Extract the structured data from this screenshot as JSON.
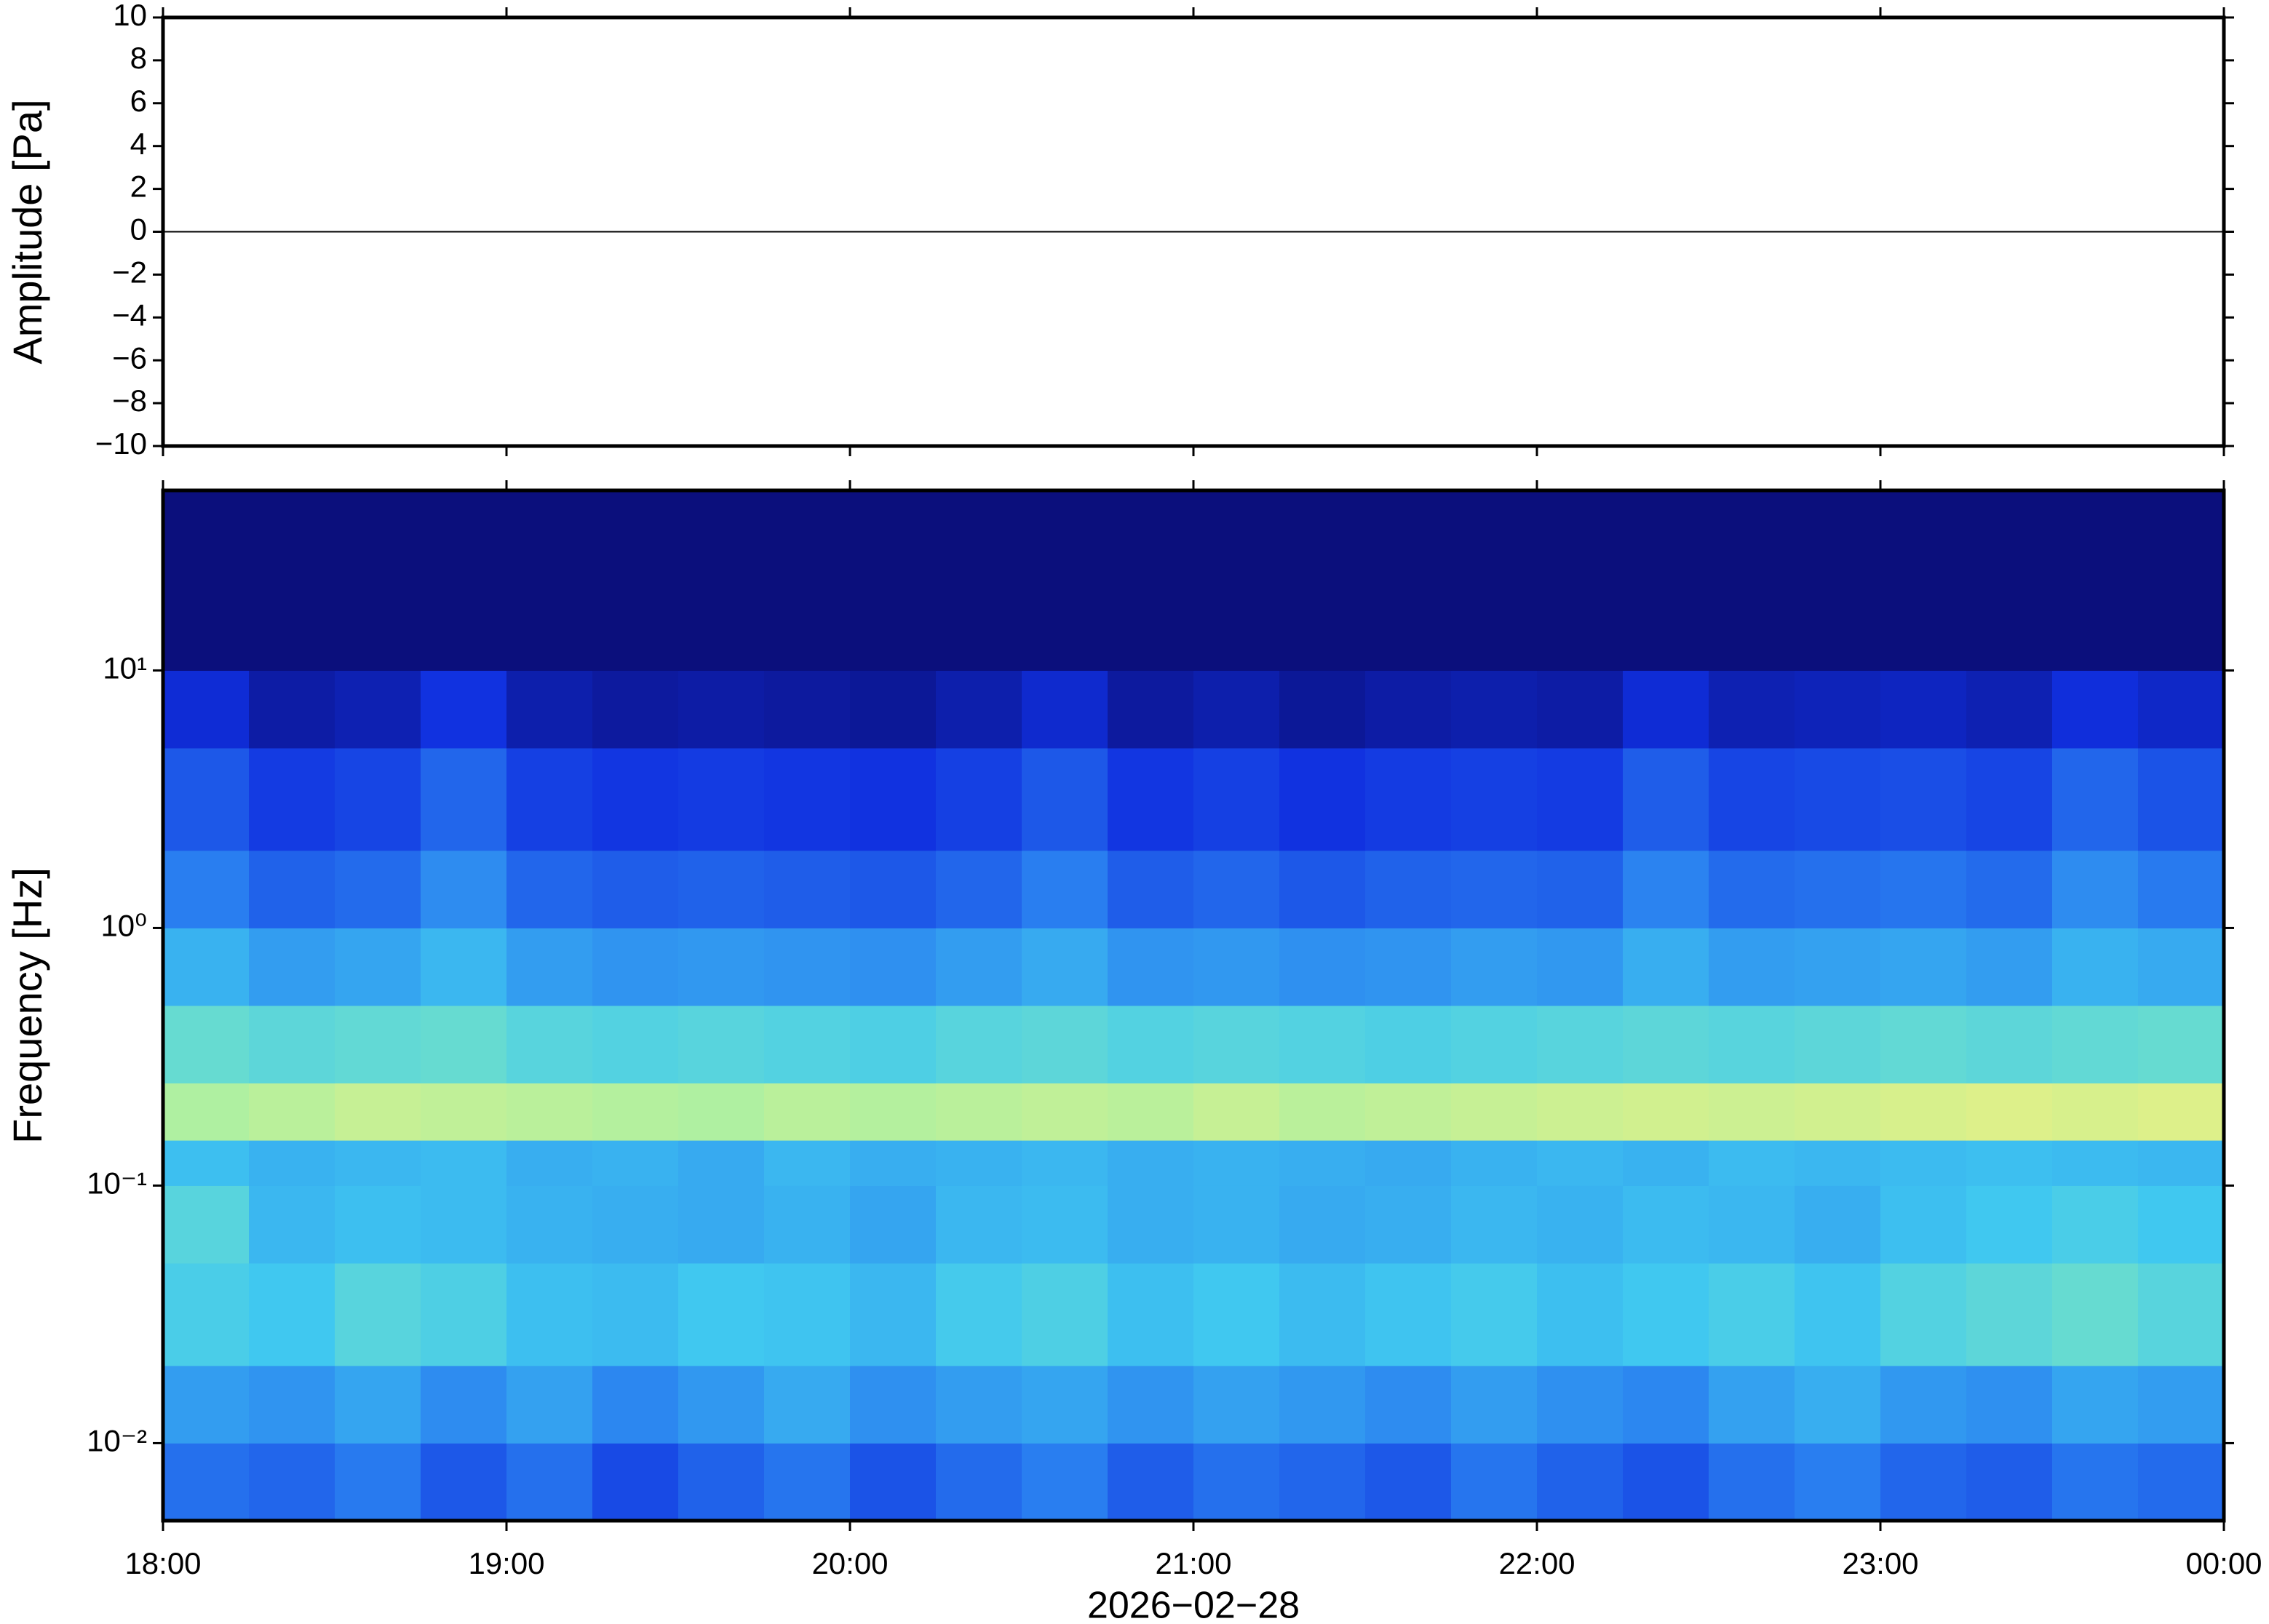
{
  "chart_data": [
    {
      "type": "line",
      "ylabel": "Amplitude [Pa]",
      "xlim": [
        18,
        24
      ],
      "ylim": [
        -10,
        10
      ],
      "yticks": [
        {
          "value": -10,
          "label": "−10"
        },
        {
          "value": -8,
          "label": "−8"
        },
        {
          "value": -6,
          "label": "−6"
        },
        {
          "value": -4,
          "label": "−4"
        },
        {
          "value": -2,
          "label": "−2"
        },
        0,
        2,
        4,
        6,
        8,
        10
      ],
      "xticks": [
        18,
        19,
        20,
        21,
        22,
        23,
        24
      ],
      "color": "#000000",
      "x": [
        18,
        18.25,
        18.5,
        18.75,
        19,
        19.25,
        19.5,
        19.75,
        20,
        20.25,
        20.5,
        20.75,
        21,
        21.25,
        21.5,
        21.75,
        22,
        22.25,
        22.5,
        22.75,
        23,
        23.25,
        23.5,
        23.75,
        24
      ],
      "values": [
        0,
        0,
        0,
        0,
        0,
        0,
        0,
        0,
        0,
        0,
        0,
        0,
        0,
        0,
        0,
        0,
        0,
        0,
        0,
        0,
        0,
        0,
        0,
        0,
        0
      ]
    },
    {
      "type": "heatmap",
      "ylabel": "Frequency [Hz]",
      "xlabel": "2026−02−28",
      "xlim": [
        18,
        24
      ],
      "xticks": [
        {
          "value": 18,
          "label": "18:00"
        },
        {
          "value": 19,
          "label": "19:00"
        },
        {
          "value": 20,
          "label": "20:00"
        },
        {
          "value": 21,
          "label": "21:00"
        },
        {
          "value": 22,
          "label": "22:00"
        },
        {
          "value": 23,
          "label": "23:00"
        },
        {
          "value": 24,
          "label": "00:00"
        }
      ],
      "ylim": [
        0.005,
        50
      ],
      "log_y": true,
      "yticks": [
        {
          "value": 0.01,
          "label": "10⁻²"
        },
        {
          "value": 0.1,
          "label": "10⁻¹"
        },
        {
          "value": 1,
          "label": "10⁰"
        },
        {
          "value": 10,
          "label": "10¹"
        }
      ],
      "zlim": [
        0,
        1
      ],
      "colormap": [
        "#0a0a6e",
        "#1030e0",
        "#2a80f0",
        "#40c8f0",
        "#90f0b0",
        "#f0f080",
        "#f8a050"
      ],
      "xbins": [
        18,
        18.25,
        18.5,
        18.75,
        19,
        19.25,
        19.5,
        19.75,
        20,
        20.25,
        20.5,
        20.75,
        21,
        21.25,
        21.5,
        21.75,
        22,
        22.25,
        22.5,
        22.75,
        23,
        23.25,
        23.5,
        23.75,
        24
      ],
      "ybins": [
        0.005,
        0.01,
        0.02,
        0.05,
        0.1,
        0.15,
        0.25,
        0.5,
        1,
        2,
        5,
        10,
        50
      ],
      "z": [
        [
          0.3,
          0.28,
          0.32,
          0.25,
          0.3,
          0.22,
          0.27,
          0.31,
          0.24,
          0.29,
          0.33,
          0.26,
          0.3,
          0.28,
          0.25,
          0.31,
          0.27,
          0.24,
          0.3,
          0.33,
          0.28,
          0.26,
          0.31,
          0.29
        ],
        [
          0.4,
          0.38,
          0.42,
          0.36,
          0.41,
          0.35,
          0.39,
          0.43,
          0.37,
          0.4,
          0.42,
          0.38,
          0.41,
          0.39,
          0.36,
          0.4,
          0.37,
          0.35,
          0.41,
          0.44,
          0.39,
          0.37,
          0.42,
          0.4
        ],
        [
          0.52,
          0.5,
          0.55,
          0.53,
          0.48,
          0.47,
          0.5,
          0.49,
          0.46,
          0.51,
          0.53,
          0.48,
          0.5,
          0.47,
          0.49,
          0.51,
          0.48,
          0.5,
          0.52,
          0.49,
          0.54,
          0.56,
          0.58,
          0.55
        ],
        [
          0.55,
          0.46,
          0.48,
          0.47,
          0.45,
          0.44,
          0.43,
          0.45,
          0.42,
          0.46,
          0.47,
          0.44,
          0.45,
          0.43,
          0.44,
          0.46,
          0.45,
          0.47,
          0.46,
          0.44,
          0.48,
          0.5,
          0.52,
          0.5
        ],
        [
          0.48,
          0.45,
          0.46,
          0.47,
          0.44,
          0.45,
          0.43,
          0.46,
          0.44,
          0.45,
          0.46,
          0.44,
          0.45,
          0.44,
          0.43,
          0.45,
          0.46,
          0.45,
          0.47,
          0.46,
          0.47,
          0.48,
          0.47,
          0.46
        ],
        [
          0.72,
          0.74,
          0.76,
          0.75,
          0.74,
          0.73,
          0.72,
          0.74,
          0.73,
          0.74,
          0.75,
          0.74,
          0.76,
          0.74,
          0.75,
          0.76,
          0.77,
          0.78,
          0.77,
          0.78,
          0.79,
          0.8,
          0.79,
          0.8
        ],
        [
          0.58,
          0.56,
          0.57,
          0.58,
          0.55,
          0.54,
          0.55,
          0.54,
          0.53,
          0.55,
          0.56,
          0.54,
          0.55,
          0.54,
          0.53,
          0.54,
          0.55,
          0.56,
          0.55,
          0.56,
          0.57,
          0.56,
          0.57,
          0.58
        ],
        [
          0.45,
          0.4,
          0.42,
          0.46,
          0.4,
          0.38,
          0.39,
          0.38,
          0.37,
          0.4,
          0.43,
          0.38,
          0.39,
          0.37,
          0.38,
          0.4,
          0.39,
          0.44,
          0.4,
          0.41,
          0.42,
          0.4,
          0.45,
          0.43
        ],
        [
          0.33,
          0.27,
          0.29,
          0.36,
          0.28,
          0.26,
          0.27,
          0.26,
          0.25,
          0.28,
          0.33,
          0.26,
          0.28,
          0.25,
          0.27,
          0.28,
          0.27,
          0.34,
          0.29,
          0.3,
          0.31,
          0.29,
          0.36,
          0.32
        ],
        [
          0.25,
          0.19,
          0.21,
          0.28,
          0.2,
          0.18,
          0.19,
          0.18,
          0.17,
          0.2,
          0.25,
          0.18,
          0.2,
          0.17,
          0.19,
          0.2,
          0.19,
          0.26,
          0.21,
          0.22,
          0.23,
          0.21,
          0.28,
          0.24
        ],
        [
          0.15,
          0.08,
          0.1,
          0.17,
          0.09,
          0.07,
          0.08,
          0.07,
          0.06,
          0.09,
          0.14,
          0.07,
          0.09,
          0.06,
          0.08,
          0.09,
          0.08,
          0.15,
          0.1,
          0.11,
          0.12,
          0.1,
          0.16,
          0.13
        ],
        [
          0.02,
          0.02,
          0.02,
          0.02,
          0.02,
          0.02,
          0.02,
          0.02,
          0.02,
          0.02,
          0.02,
          0.02,
          0.02,
          0.02,
          0.02,
          0.02,
          0.02,
          0.02,
          0.02,
          0.02,
          0.02,
          0.02,
          0.02,
          0.02
        ]
      ]
    }
  ]
}
